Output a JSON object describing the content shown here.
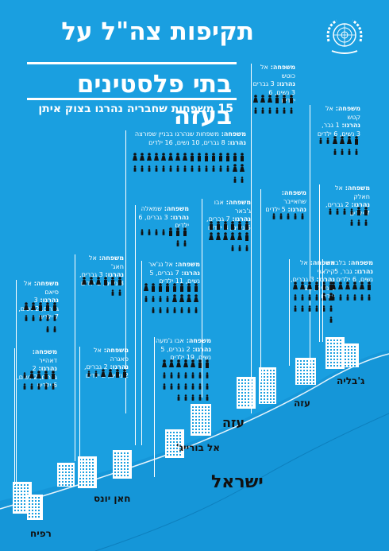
{
  "title_line1": "תקיפות צה\"ל על",
  "title_line2": "בתי פלסטינים בעזה",
  "subtitle": "15 משפחות שחבריה נהרגו בצוק איתן",
  "logo": "un-emblem",
  "colors": {
    "background": "#1a9fe0",
    "text": "#ffffff",
    "dark": "#111111",
    "coast": "#ffffff"
  },
  "map_labels": {
    "israel": "ישראל",
    "gaza": "עזה",
    "gaza_city": "עזה",
    "jabalia": "ג'בליה",
    "bureij": "אל בורייג'",
    "khan_yunis": "חאן יונס",
    "rafah": "רפיח"
  },
  "families": [
    {
      "family": "אל כוטש",
      "killed": "3 גברים",
      "extra": "3 נשים, 6 ילדים",
      "men": 3,
      "women": 3,
      "children": 6
    },
    {
      "family": "אל קטש",
      "killed": "1 גבר,",
      "extra": "3 נשים, 6 ילדים",
      "men": 1,
      "women": 3,
      "children": 6
    },
    {
      "family": "משפחות שנהרגו בבניין שפורצה",
      "killed": "8 גברים, 10 נשים, 16 ילדים",
      "extra": "",
      "men": 8,
      "women": 10,
      "children": 16
    },
    {
      "family": "אל חאלק",
      "killed": "2 גברים, 7 ילדים",
      "extra": "",
      "men": 2,
      "women": 0,
      "children": 7
    },
    {
      "family": "אבו ג'באר",
      "killed": "7 גברים, 5 נשים, 3 ילדים",
      "extra": "",
      "men": 7,
      "women": 5,
      "children": 3
    },
    {
      "family": "שמאלה",
      "killed": "3 גברים, 6 ילדים",
      "extra": "",
      "men": 3,
      "women": 0,
      "children": 6
    },
    {
      "family": "שחאייבר",
      "killed": "5 ילדים",
      "extra": "",
      "men": 0,
      "women": 0,
      "children": 5
    },
    {
      "family": "אל קילאני",
      "killed": "3 גברים, 5 נשים, 11 ילדים",
      "extra": "",
      "men": 3,
      "women": 5,
      "children": 11
    },
    {
      "family": "אל נג'אר",
      "killed": "7 גברים, 5 נשים, 11 ילדים",
      "extra": "",
      "men": 7,
      "women": 5,
      "children": 11
    },
    {
      "family": "אל חאג'",
      "killed": "3 גברים, 3 נשים, 2 ילדים",
      "extra": "",
      "men": 3,
      "women": 3,
      "children": 2
    },
    {
      "family": "אל סיאם",
      "killed": "3 גברים, 2 נשים, 7 ילדים",
      "extra": "",
      "men": 3,
      "women": 2,
      "children": 7
    },
    {
      "family": "בלבאא",
      "killed": "גבר, 5 נשים, 6 ילדים",
      "extra": "",
      "men": 1,
      "women": 5,
      "children": 6
    },
    {
      "family": "אבו ג'מעה",
      "killed": "2 גברים, 5 נשים, 19 ילדים",
      "extra": "",
      "men": 2,
      "women": 5,
      "children": 19
    },
    {
      "family": "אל פאגרה",
      "killed": "2 גברים, 2 נשים, 2 ילדים",
      "extra": "",
      "men": 2,
      "women": 2,
      "children": 2
    },
    {
      "family": "דאהייר",
      "killed": "2 גברים, 2 נשים, 6 ילדים",
      "extra": "",
      "men": 2,
      "women": 2,
      "children": 6
    }
  ],
  "labels": {
    "family_prefix": "משפחה:",
    "killed_prefix": "נהרגו:"
  }
}
